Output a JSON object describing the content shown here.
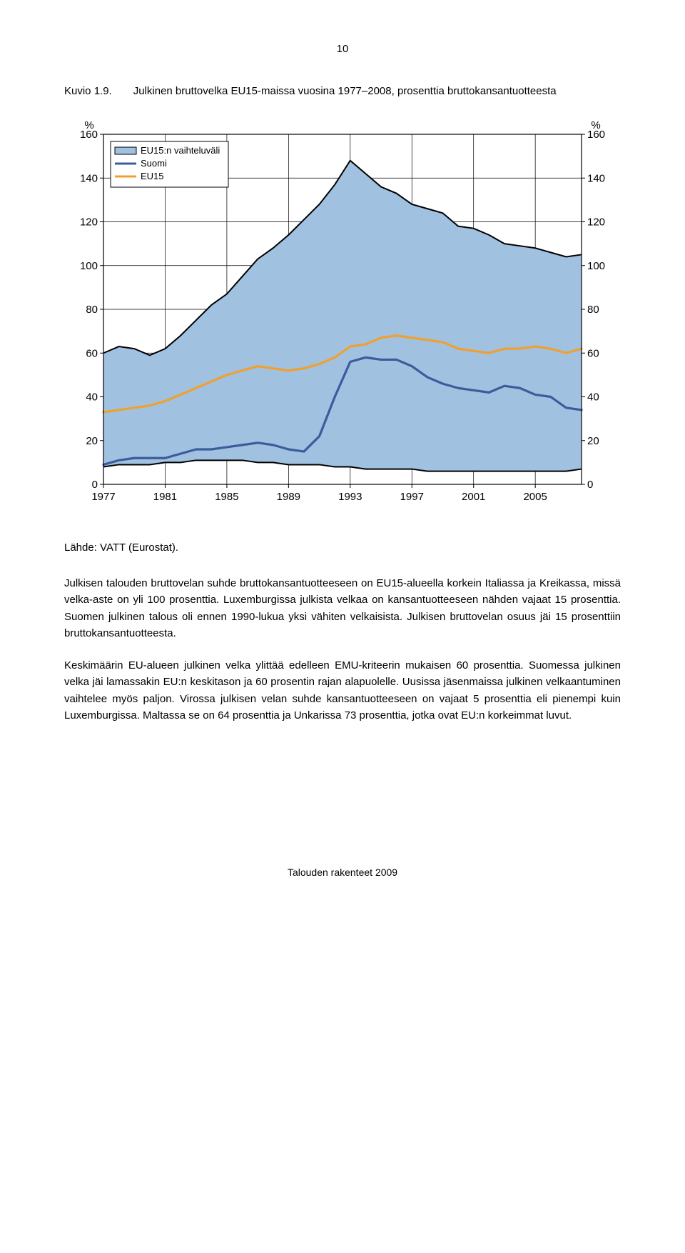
{
  "page_number": "10",
  "figure": {
    "label": "Kuvio 1.9.",
    "title": "Julkinen bruttovelka EU15-maissa vuosina 1977–2008, prosenttia bruttokansantuotteesta"
  },
  "chart": {
    "type": "line-area",
    "unit_left": "%",
    "unit_right": "%",
    "background_color": "#ffffff",
    "plot_border_color": "#000000",
    "grid_color": "#000000",
    "grid_stroke_width": 0.7,
    "ylim": [
      0,
      160
    ],
    "yticks": [
      0,
      20,
      40,
      60,
      80,
      100,
      120,
      140,
      160
    ],
    "xlim": [
      1977,
      2008
    ],
    "xticks": [
      1977,
      1981,
      1985,
      1989,
      1993,
      1997,
      2001,
      2005
    ],
    "xtick_labels": [
      "1977",
      "1981",
      "1985",
      "1989",
      "1993",
      "1997",
      "2001",
      "2005"
    ],
    "ytick_labels_left": [
      "0",
      "20",
      "40",
      "60",
      "80",
      "100",
      "120",
      "140",
      "160"
    ],
    "ytick_labels_right": [
      "0",
      "20",
      "40",
      "60",
      "80",
      "100",
      "120",
      "140",
      "160"
    ],
    "axis_fontsize": 15,
    "legend": {
      "position": "top-left-inside",
      "border_color": "#000000",
      "background_color": "#ffffff",
      "fontsize": 13,
      "swatch_w": 30,
      "swatch_h": 10,
      "items": [
        {
          "label": "EU15:n vaihteluväli",
          "type": "area",
          "fill": "#a0c1e0",
          "stroke": "#000000"
        },
        {
          "label": "Suomi",
          "type": "line",
          "stroke": "#3b5c9b",
          "stroke_width": 3
        },
        {
          "label": "EU15",
          "type": "line",
          "stroke": "#f0a02e",
          "stroke_width": 3
        }
      ]
    },
    "series": {
      "band_upper": {
        "color_fill": "#a0c1e0",
        "color_stroke": "#000000",
        "stroke_width": 2,
        "years": [
          1977,
          1978,
          1979,
          1980,
          1981,
          1982,
          1983,
          1984,
          1985,
          1986,
          1987,
          1988,
          1989,
          1990,
          1991,
          1992,
          1993,
          1994,
          1995,
          1996,
          1997,
          1998,
          1999,
          2000,
          2001,
          2002,
          2003,
          2004,
          2005,
          2006,
          2007,
          2008
        ],
        "values": [
          60,
          63,
          62,
          59,
          62,
          68,
          75,
          82,
          87,
          95,
          103,
          108,
          114,
          121,
          128,
          137,
          148,
          142,
          136,
          133,
          128,
          126,
          124,
          118,
          117,
          114,
          110,
          109,
          108,
          106,
          104,
          105
        ]
      },
      "band_lower": {
        "color_stroke": "#000000",
        "stroke_width": 2,
        "years": [
          1977,
          1978,
          1979,
          1980,
          1981,
          1982,
          1983,
          1984,
          1985,
          1986,
          1987,
          1988,
          1989,
          1990,
          1991,
          1992,
          1993,
          1994,
          1995,
          1996,
          1997,
          1998,
          1999,
          2000,
          2001,
          2002,
          2003,
          2004,
          2005,
          2006,
          2007,
          2008
        ],
        "values": [
          8,
          9,
          9,
          9,
          10,
          10,
          11,
          11,
          11,
          11,
          10,
          10,
          9,
          9,
          9,
          8,
          8,
          7,
          7,
          7,
          7,
          6,
          6,
          6,
          6,
          6,
          6,
          6,
          6,
          6,
          6,
          7
        ]
      },
      "eu15": {
        "color": "#f0a02e",
        "stroke_width": 3.2,
        "years": [
          1977,
          1978,
          1979,
          1980,
          1981,
          1982,
          1983,
          1984,
          1985,
          1986,
          1987,
          1988,
          1989,
          1990,
          1991,
          1992,
          1993,
          1994,
          1995,
          1996,
          1997,
          1998,
          1999,
          2000,
          2001,
          2002,
          2003,
          2004,
          2005,
          2006,
          2007,
          2008
        ],
        "values": [
          33,
          34,
          35,
          36,
          38,
          41,
          44,
          47,
          50,
          52,
          54,
          53,
          52,
          53,
          55,
          58,
          63,
          64,
          67,
          68,
          67,
          66,
          65,
          62,
          61,
          60,
          62,
          62,
          63,
          62,
          60,
          62
        ]
      },
      "suomi": {
        "color": "#3b5c9b",
        "stroke_width": 3.2,
        "years": [
          1977,
          1978,
          1979,
          1980,
          1981,
          1982,
          1983,
          1984,
          1985,
          1986,
          1987,
          1988,
          1989,
          1990,
          1991,
          1992,
          1993,
          1994,
          1995,
          1996,
          1997,
          1998,
          1999,
          2000,
          2001,
          2002,
          2003,
          2004,
          2005,
          2006,
          2007,
          2008
        ],
        "values": [
          9,
          11,
          12,
          12,
          12,
          14,
          16,
          16,
          17,
          18,
          19,
          18,
          16,
          15,
          22,
          40,
          56,
          58,
          57,
          57,
          54,
          49,
          46,
          44,
          43,
          42,
          45,
          44,
          41,
          40,
          35,
          34
        ]
      }
    }
  },
  "source_label": "Lähde: VATT (Eurostat).",
  "paragraphs": [
    "Julkisen talouden bruttovelan suhde bruttokansantuotteeseen on EU15-alueella korkein Italiassa ja Kreikassa, missä velka-aste on yli 100 prosenttia. Luxemburgissa julkista velkaa on kansantuotteeseen nähden vajaat 15 prosenttia. Suomen julkinen talous oli ennen 1990-lukua yksi vähiten velkaisista. Julkisen bruttovelan osuus jäi 15 prosenttiin bruttokansantuotteesta.",
    "Keskimäärin EU-alueen julkinen velka ylittää edelleen EMU-kriteerin mukaisen 60 prosenttia. Suomessa julkinen velka jäi lamassakin EU:n keskitason ja 60 prosentin rajan alapuolelle. Uusissa jäsenmaissa julkinen velkaantuminen vaihtelee myös paljon. Virossa julkisen velan suhde kansantuotteeseen on vajaat 5 prosenttia eli pienempi kuin Luxemburgissa. Maltassa se on 64 prosenttia ja Unkarissa 73 prosenttia, jotka ovat EU:n korkeimmat luvut."
  ],
  "footer": "Talouden rakenteet 2009"
}
